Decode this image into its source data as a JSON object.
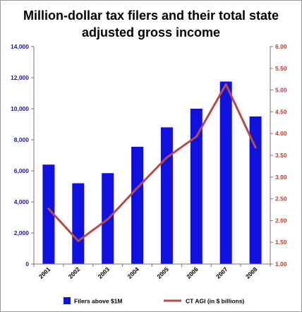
{
  "chart_data": {
    "type": "bar",
    "title_line1": "Million-dollar tax filers and their total state",
    "title_line2": "adjusted gross income",
    "categories": [
      "2001",
      "2002",
      "2003",
      "2004",
      "2005",
      "2006",
      "2007",
      "2008"
    ],
    "series": [
      {
        "name": "Filers above $1M",
        "type": "bar",
        "axis": "left",
        "color": "#1010e0",
        "values": [
          6400,
          5200,
          5850,
          7550,
          8800,
          10000,
          11750,
          9500
        ]
      },
      {
        "name": "CT AGI (in $ billions)",
        "type": "line",
        "axis": "right",
        "color": "#b94a48",
        "values": [
          2.27,
          1.53,
          2.03,
          2.75,
          3.45,
          3.93,
          5.13,
          3.68
        ]
      }
    ],
    "y_left": {
      "min": 0,
      "max": 14000,
      "color": "#1a1aa6",
      "ticks": [
        "0",
        "2,000",
        "4,000",
        "6,000",
        "8,000",
        "10,000",
        "12,000",
        "14,000"
      ]
    },
    "y_right": {
      "min": 1.0,
      "max": 6.0,
      "color": "#c0392b",
      "ticks": [
        "1.00",
        "1.50",
        "2.00",
        "2.50",
        "3.00",
        "3.50",
        "4.00",
        "4.50",
        "5.00",
        "5.50",
        "6.00"
      ]
    },
    "grid": false,
    "legend_position": "bottom"
  }
}
